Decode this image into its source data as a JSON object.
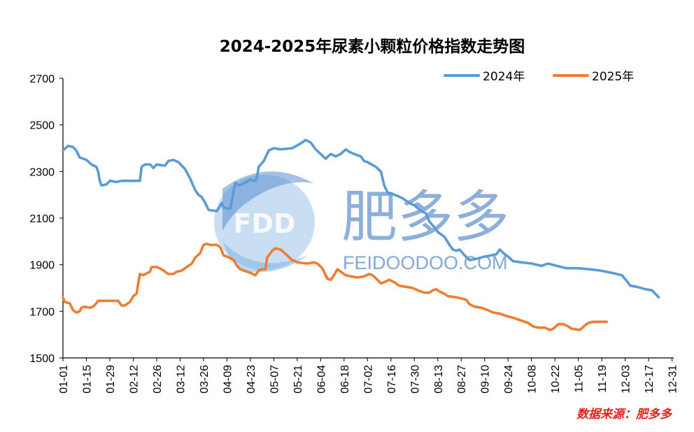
{
  "chart_data": {
    "type": "line",
    "title": "2024-2025年尿素小颗粒价格指数走势图",
    "xlabel": "",
    "ylabel": "",
    "ylim": [
      1500,
      2700
    ],
    "yticks": [
      1500,
      1700,
      1900,
      2100,
      2300,
      2500,
      2700
    ],
    "x_ticks": [
      "01-01",
      "01-15",
      "01-29",
      "02-12",
      "02-26",
      "03-12",
      "03-26",
      "04-09",
      "04-23",
      "05-07",
      "05-21",
      "06-04",
      "06-18",
      "07-02",
      "07-16",
      "07-30",
      "08-13",
      "08-27",
      "09-10",
      "09-24",
      "10-08",
      "10-22",
      "11-05",
      "11-19",
      "12-03",
      "12-17",
      "12-31"
    ],
    "x_unit": "day of year",
    "xlim": [
      1,
      366
    ],
    "grid": false,
    "legend_position": "top-right",
    "colors": {
      "2024": "#5b9bd5",
      "2025": "#ed7d31"
    },
    "series": [
      {
        "name": "2024年",
        "color": "#5b9bd5",
        "points": [
          [
            1,
            2390
          ],
          [
            4,
            2410
          ],
          [
            7,
            2405
          ],
          [
            9,
            2390
          ],
          [
            11,
            2360
          ],
          [
            15,
            2350
          ],
          [
            18,
            2330
          ],
          [
            21,
            2320
          ],
          [
            22,
            2300
          ],
          [
            23,
            2260
          ],
          [
            24,
            2240
          ],
          [
            27,
            2245
          ],
          [
            29,
            2260
          ],
          [
            33,
            2255
          ],
          [
            36,
            2260
          ],
          [
            43,
            2260
          ],
          [
            47,
            2260
          ],
          [
            48,
            2320
          ],
          [
            50,
            2330
          ],
          [
            53,
            2330
          ],
          [
            55,
            2315
          ],
          [
            57,
            2330
          ],
          [
            62,
            2325
          ],
          [
            64,
            2345
          ],
          [
            67,
            2350
          ],
          [
            70,
            2340
          ],
          [
            74,
            2310
          ],
          [
            77,
            2270
          ],
          [
            80,
            2220
          ],
          [
            82,
            2200
          ],
          [
            84,
            2190
          ],
          [
            86,
            2165
          ],
          [
            88,
            2135
          ],
          [
            93,
            2130
          ],
          [
            96,
            2165
          ],
          [
            97,
            2145
          ],
          [
            101,
            2140
          ],
          [
            102,
            2175
          ],
          [
            103,
            2220
          ],
          [
            104,
            2250
          ],
          [
            106,
            2240
          ],
          [
            108,
            2245
          ],
          [
            113,
            2265
          ],
          [
            116,
            2260
          ],
          [
            117,
            2275
          ],
          [
            118,
            2320
          ],
          [
            121,
            2345
          ],
          [
            124,
            2390
          ],
          [
            127,
            2400
          ],
          [
            131,
            2395
          ],
          [
            138,
            2400
          ],
          [
            143,
            2420
          ],
          [
            146,
            2435
          ],
          [
            149,
            2425
          ],
          [
            152,
            2395
          ],
          [
            155,
            2375
          ],
          [
            158,
            2355
          ],
          [
            161,
            2375
          ],
          [
            164,
            2365
          ],
          [
            167,
            2375
          ],
          [
            170,
            2395
          ],
          [
            172,
            2385
          ],
          [
            175,
            2375
          ],
          [
            179,
            2365
          ],
          [
            181,
            2345
          ],
          [
            183,
            2340
          ],
          [
            188,
            2320
          ],
          [
            191,
            2300
          ],
          [
            193,
            2240
          ],
          [
            195,
            2210
          ],
          [
            201,
            2195
          ],
          [
            204,
            2185
          ],
          [
            208,
            2165
          ],
          [
            211,
            2155
          ],
          [
            215,
            2130
          ],
          [
            218,
            2120
          ],
          [
            220,
            2085
          ],
          [
            223,
            2060
          ],
          [
            225,
            2040
          ],
          [
            229,
            2020
          ],
          [
            232,
            1985
          ],
          [
            234,
            1965
          ],
          [
            236,
            1960
          ],
          [
            238,
            1965
          ],
          [
            241,
            1940
          ],
          [
            244,
            1920
          ],
          [
            248,
            1925
          ],
          [
            253,
            1935
          ],
          [
            257,
            1940
          ],
          [
            260,
            1945
          ],
          [
            262,
            1965
          ],
          [
            265,
            1945
          ],
          [
            267,
            1935
          ],
          [
            270,
            1915
          ],
          [
            275,
            1910
          ],
          [
            281,
            1905
          ],
          [
            287,
            1895
          ],
          [
            291,
            1905
          ],
          [
            296,
            1895
          ],
          [
            302,
            1885
          ],
          [
            309,
            1885
          ],
          [
            316,
            1880
          ],
          [
            322,
            1875
          ],
          [
            329,
            1865
          ],
          [
            335,
            1855
          ],
          [
            338,
            1830
          ],
          [
            340,
            1810
          ],
          [
            344,
            1805
          ],
          [
            349,
            1795
          ],
          [
            353,
            1790
          ],
          [
            355,
            1775
          ],
          [
            357,
            1760
          ]
        ]
      },
      {
        "name": "2025年",
        "color": "#ed7d31",
        "points": [
          [
            1,
            1760
          ],
          [
            2,
            1740
          ],
          [
            5,
            1735
          ],
          [
            7,
            1705
          ],
          [
            9,
            1695
          ],
          [
            11,
            1700
          ],
          [
            12,
            1715
          ],
          [
            14,
            1720
          ],
          [
            17,
            1715
          ],
          [
            19,
            1720
          ],
          [
            21,
            1735
          ],
          [
            22,
            1745
          ],
          [
            30,
            1745
          ],
          [
            34,
            1745
          ],
          [
            36,
            1725
          ],
          [
            38,
            1725
          ],
          [
            41,
            1740
          ],
          [
            43,
            1765
          ],
          [
            45,
            1775
          ],
          [
            46,
            1820
          ],
          [
            47,
            1860
          ],
          [
            49,
            1855
          ],
          [
            53,
            1870
          ],
          [
            54,
            1890
          ],
          [
            57,
            1890
          ],
          [
            60,
            1880
          ],
          [
            62,
            1870
          ],
          [
            64,
            1860
          ],
          [
            67,
            1860
          ],
          [
            69,
            1870
          ],
          [
            72,
            1875
          ],
          [
            76,
            1895
          ],
          [
            78,
            1905
          ],
          [
            80,
            1930
          ],
          [
            83,
            1950
          ],
          [
            85,
            1985
          ],
          [
            87,
            1990
          ],
          [
            89,
            1985
          ],
          [
            93,
            1985
          ],
          [
            95,
            1975
          ],
          [
            97,
            1940
          ],
          [
            99,
            1935
          ],
          [
            103,
            1920
          ],
          [
            105,
            1895
          ],
          [
            107,
            1880
          ],
          [
            109,
            1875
          ],
          [
            113,
            1865
          ],
          [
            116,
            1855
          ],
          [
            118,
            1875
          ],
          [
            120,
            1880
          ],
          [
            122,
            1880
          ],
          [
            123,
            1930
          ],
          [
            126,
            1960
          ],
          [
            128,
            1970
          ],
          [
            131,
            1965
          ],
          [
            135,
            1940
          ],
          [
            138,
            1920
          ],
          [
            141,
            1910
          ],
          [
            147,
            1905
          ],
          [
            151,
            1910
          ],
          [
            153,
            1905
          ],
          [
            156,
            1885
          ],
          [
            159,
            1840
          ],
          [
            161,
            1835
          ],
          [
            163,
            1855
          ],
          [
            165,
            1880
          ],
          [
            167,
            1870
          ],
          [
            170,
            1855
          ],
          [
            173,
            1850
          ],
          [
            177,
            1845
          ],
          [
            181,
            1850
          ],
          [
            184,
            1860
          ],
          [
            186,
            1855
          ],
          [
            189,
            1835
          ],
          [
            191,
            1820
          ],
          [
            193,
            1825
          ],
          [
            196,
            1835
          ],
          [
            199,
            1825
          ],
          [
            202,
            1810
          ],
          [
            206,
            1805
          ],
          [
            210,
            1800
          ],
          [
            213,
            1790
          ],
          [
            217,
            1780
          ],
          [
            220,
            1780
          ],
          [
            222,
            1790
          ],
          [
            224,
            1795
          ],
          [
            226,
            1785
          ],
          [
            229,
            1775
          ],
          [
            231,
            1765
          ],
          [
            236,
            1760
          ],
          [
            242,
            1750
          ],
          [
            244,
            1730
          ],
          [
            247,
            1720
          ],
          [
            251,
            1715
          ],
          [
            255,
            1705
          ],
          [
            258,
            1695
          ],
          [
            262,
            1690
          ],
          [
            266,
            1680
          ],
          [
            271,
            1670
          ],
          [
            275,
            1660
          ],
          [
            279,
            1650
          ],
          [
            282,
            1635
          ],
          [
            285,
            1630
          ],
          [
            289,
            1630
          ],
          [
            292,
            1620
          ],
          [
            294,
            1625
          ],
          [
            297,
            1645
          ],
          [
            300,
            1645
          ],
          [
            303,
            1635
          ],
          [
            305,
            1625
          ],
          [
            310,
            1620
          ],
          [
            313,
            1640
          ],
          [
            315,
            1650
          ],
          [
            318,
            1655
          ],
          [
            323,
            1655
          ],
          [
            326,
            1655
          ]
        ]
      }
    ]
  },
  "watermark": {
    "logo_text": "FDD",
    "brand_cn": "肥多多",
    "brand_en": "FEIDOODOO.COM"
  },
  "source_note": "数据来源：肥多多"
}
